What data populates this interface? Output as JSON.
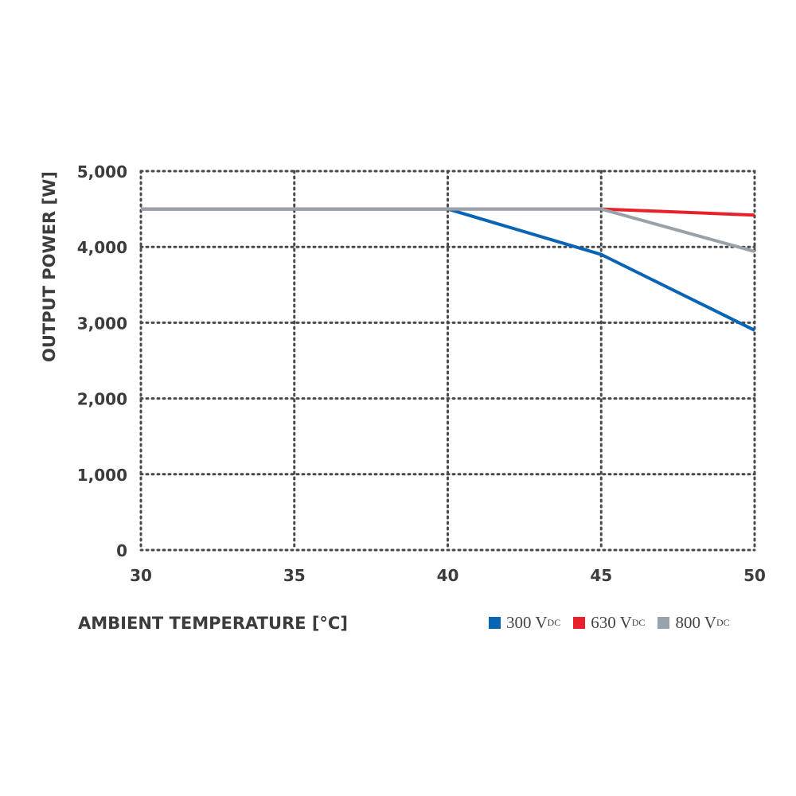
{
  "chart_data": {
    "type": "line",
    "xlabel": "AMBIENT TEMPERATURE [°C]",
    "ylabel": "OUTPUT POWER [W]",
    "xlim": [
      30,
      50
    ],
    "ylim": [
      0,
      5000
    ],
    "x_ticks": [
      "30",
      "35",
      "40",
      "45",
      "50"
    ],
    "y_ticks": [
      "0",
      "1,000",
      "2,000",
      "3,000",
      "4,000",
      "5,000"
    ],
    "grid": "dotted",
    "legend_position": "bottom-right",
    "series": [
      {
        "name": "300 V",
        "subscript": "DC",
        "color": "#0a64b4",
        "x": [
          30,
          40,
          45,
          50
        ],
        "y": [
          4500,
          4500,
          3900,
          2900
        ]
      },
      {
        "name": "630 V",
        "subscript": "DC",
        "color": "#e8202a",
        "x": [
          30,
          40,
          45,
          50
        ],
        "y": [
          4500,
          4500,
          4500,
          4420
        ]
      },
      {
        "name": "800 V",
        "subscript": "DC",
        "color": "#98a2a8",
        "x": [
          30,
          40,
          45,
          50
        ],
        "y": [
          4500,
          4500,
          4500,
          3940
        ]
      }
    ]
  }
}
